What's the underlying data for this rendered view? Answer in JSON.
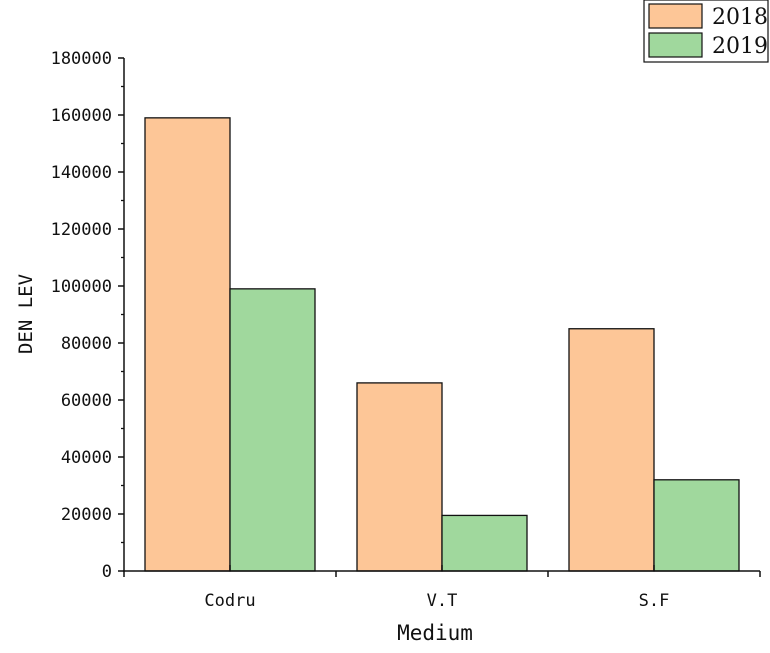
{
  "chart_data": {
    "type": "bar",
    "categories": [
      "Codru",
      "V.T",
      "S.F"
    ],
    "series": [
      {
        "name": "2018",
        "values": [
          159000,
          66000,
          85000
        ],
        "color": "#fdc697"
      },
      {
        "name": "2019",
        "values": [
          99000,
          19500,
          32000
        ],
        "color": "#a0d89d"
      }
    ],
    "xlabel": "Medium",
    "ylabel": "DEN LEV",
    "ylim": [
      0,
      180000
    ],
    "yticks": [
      0,
      20000,
      40000,
      60000,
      80000,
      100000,
      120000,
      140000,
      160000,
      180000
    ],
    "grid": false,
    "legend": "top-right"
  }
}
